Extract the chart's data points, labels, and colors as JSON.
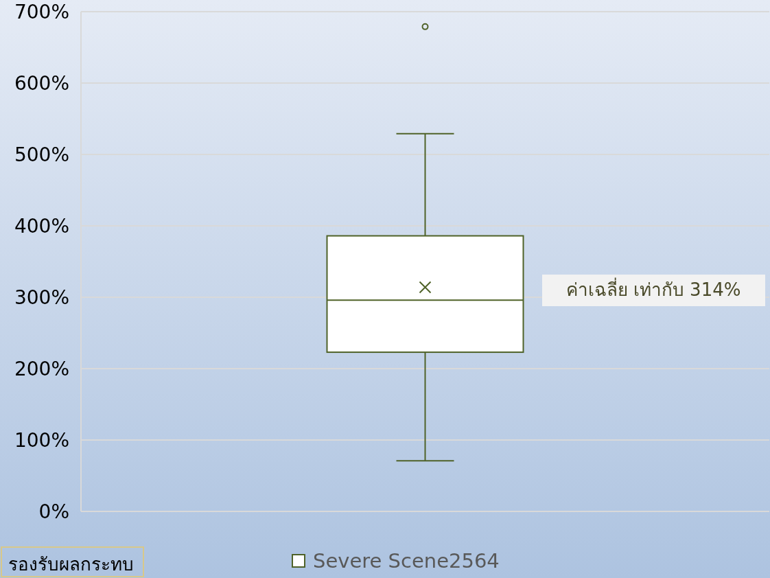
{
  "chart_data": {
    "type": "box",
    "categories": [
      null
    ],
    "series": [
      {
        "name": "Severe Scene2564",
        "color": "#4f6228",
        "boxes": [
          {
            "low": 71,
            "q1": 223,
            "median": 296,
            "q3": 386,
            "high": 529,
            "mean": 314,
            "outliers": [
              679
            ]
          }
        ]
      }
    ],
    "ylim": [
      0,
      700
    ],
    "yticks": [
      {
        "value": 0,
        "label": "0%"
      },
      {
        "value": 100,
        "label": "100%"
      },
      {
        "value": 200,
        "label": "200%"
      },
      {
        "value": 300,
        "label": "300%"
      },
      {
        "value": 400,
        "label": "400%"
      },
      {
        "value": 500,
        "label": "500%"
      },
      {
        "value": 600,
        "label": "600%"
      },
      {
        "value": 700,
        "label": "700%"
      }
    ],
    "grid": "y",
    "legend": "bottom",
    "annotations": [
      "ค่าเฉลี่ย เท่ากับ 314%",
      "รองรับผลกระทบ"
    ]
  }
}
